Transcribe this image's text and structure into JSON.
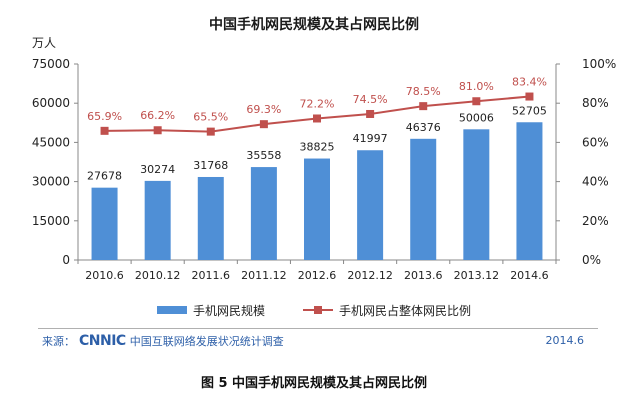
{
  "chart_data": {
    "type": "bar",
    "title": "中国手机网民规模及其占网民比例",
    "ylabel_left": "万人",
    "categories": [
      "2010.6",
      "2010.12",
      "2011.6",
      "2011.12",
      "2012.6",
      "2012.12",
      "2013.6",
      "2013.12",
      "2014.6"
    ],
    "series": [
      {
        "name": "手机网民规模",
        "kind": "bar",
        "axis": "left",
        "values": [
          27678,
          30274,
          31768,
          35558,
          38825,
          41997,
          46376,
          50006,
          52705
        ],
        "labels": [
          "27678",
          "30274",
          "31768",
          "35558",
          "38825",
          "41997",
          "46376",
          "50006",
          "52705"
        ]
      },
      {
        "name": "手机网民占整体网民比例",
        "kind": "line",
        "axis": "right",
        "values": [
          65.9,
          66.2,
          65.5,
          69.3,
          72.2,
          74.5,
          78.5,
          81.0,
          83.4
        ],
        "labels": [
          "65.9%",
          "66.2%",
          "65.5%",
          "69.3%",
          "72.2%",
          "74.5%",
          "78.5%",
          "81.0%",
          "83.4%"
        ]
      }
    ],
    "ylim_left": [
      0,
      75000
    ],
    "yticks_left": [
      "0",
      "15000",
      "30000",
      "45000",
      "60000",
      "75000"
    ],
    "ylim_right": [
      0,
      100
    ],
    "yticks_right": [
      "0%",
      "20%",
      "40%",
      "60%",
      "80%",
      "100%"
    ],
    "legend_position": "bottom",
    "grid": false
  },
  "colors": {
    "bar": "#4f8fd6",
    "line": "#c0504d",
    "source": "#2d5fa8"
  },
  "source": {
    "prefix": "来源：",
    "logo": "CNNIC",
    "org": "中国互联网络发展状况统计调查",
    "date": "2014.6"
  },
  "caption": "图 5 中国手机网民规模及其占网民比例"
}
